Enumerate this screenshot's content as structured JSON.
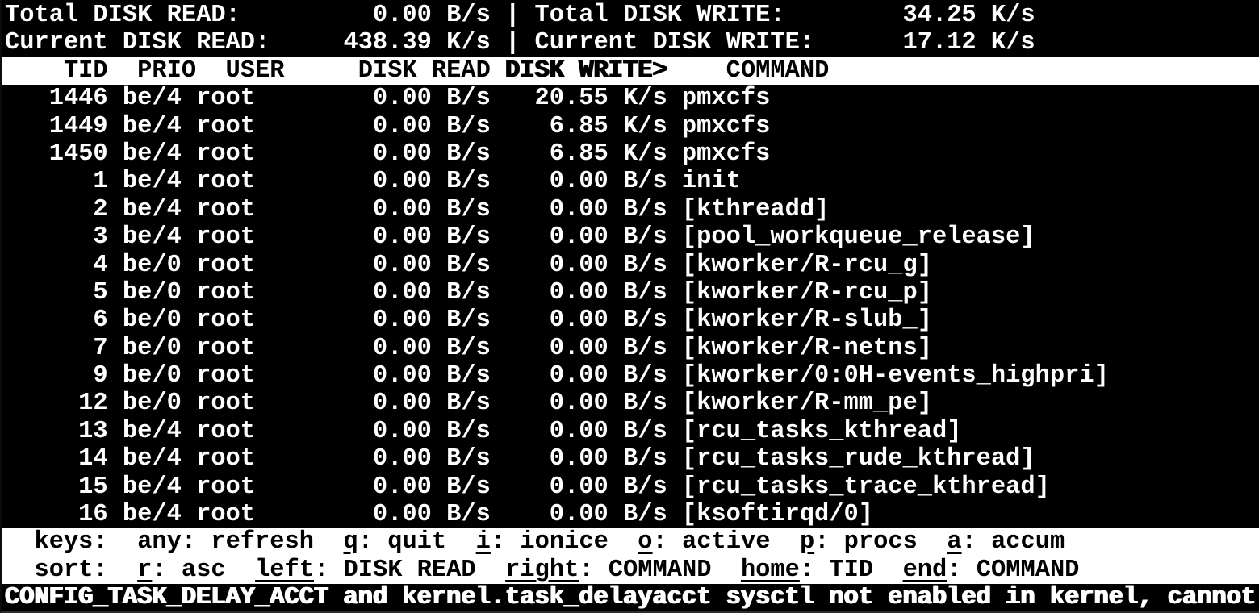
{
  "summary": {
    "total_read_label": "Total DISK READ:",
    "total_read": "0.00 B/s",
    "total_write_label": "Total DISK WRITE:",
    "total_write": "34.25 K/s",
    "current_read_label": "Current DISK READ:",
    "current_read": "438.39 K/s",
    "current_write_label": "Current DISK WRITE:",
    "current_write": "17.12 K/s",
    "separator": "|"
  },
  "table": {
    "columns": [
      "TID",
      "PRIO",
      "USER",
      "DISK READ",
      "DISK WRITE>",
      "COMMAND"
    ],
    "sort_column": "DISK WRITE>",
    "sort_direction": "desc",
    "rows": [
      {
        "tid": "1446",
        "prio": "be/4",
        "user": "root",
        "disk_read": "0.00 B/s",
        "disk_write": "20.55 K/s",
        "command": "pmxcfs"
      },
      {
        "tid": "1449",
        "prio": "be/4",
        "user": "root",
        "disk_read": "0.00 B/s",
        "disk_write": "6.85 K/s",
        "command": "pmxcfs"
      },
      {
        "tid": "1450",
        "prio": "be/4",
        "user": "root",
        "disk_read": "0.00 B/s",
        "disk_write": "6.85 K/s",
        "command": "pmxcfs"
      },
      {
        "tid": "1",
        "prio": "be/4",
        "user": "root",
        "disk_read": "0.00 B/s",
        "disk_write": "0.00 B/s",
        "command": "init"
      },
      {
        "tid": "2",
        "prio": "be/4",
        "user": "root",
        "disk_read": "0.00 B/s",
        "disk_write": "0.00 B/s",
        "command": "[kthreadd]"
      },
      {
        "tid": "3",
        "prio": "be/4",
        "user": "root",
        "disk_read": "0.00 B/s",
        "disk_write": "0.00 B/s",
        "command": "[pool_workqueue_release]"
      },
      {
        "tid": "4",
        "prio": "be/0",
        "user": "root",
        "disk_read": "0.00 B/s",
        "disk_write": "0.00 B/s",
        "command": "[kworker/R-rcu_g]"
      },
      {
        "tid": "5",
        "prio": "be/0",
        "user": "root",
        "disk_read": "0.00 B/s",
        "disk_write": "0.00 B/s",
        "command": "[kworker/R-rcu_p]"
      },
      {
        "tid": "6",
        "prio": "be/0",
        "user": "root",
        "disk_read": "0.00 B/s",
        "disk_write": "0.00 B/s",
        "command": "[kworker/R-slub_]"
      },
      {
        "tid": "7",
        "prio": "be/0",
        "user": "root",
        "disk_read": "0.00 B/s",
        "disk_write": "0.00 B/s",
        "command": "[kworker/R-netns]"
      },
      {
        "tid": "9",
        "prio": "be/0",
        "user": "root",
        "disk_read": "0.00 B/s",
        "disk_write": "0.00 B/s",
        "command": "[kworker/0:0H-events_highpri]"
      },
      {
        "tid": "12",
        "prio": "be/0",
        "user": "root",
        "disk_read": "0.00 B/s",
        "disk_write": "0.00 B/s",
        "command": "[kworker/R-mm_pe]"
      },
      {
        "tid": "13",
        "prio": "be/4",
        "user": "root",
        "disk_read": "0.00 B/s",
        "disk_write": "0.00 B/s",
        "command": "[rcu_tasks_kthread]"
      },
      {
        "tid": "14",
        "prio": "be/4",
        "user": "root",
        "disk_read": "0.00 B/s",
        "disk_write": "0.00 B/s",
        "command": "[rcu_tasks_rude_kthread]"
      },
      {
        "tid": "15",
        "prio": "be/4",
        "user": "root",
        "disk_read": "0.00 B/s",
        "disk_write": "0.00 B/s",
        "command": "[rcu_tasks_trace_kthread]"
      },
      {
        "tid": "16",
        "prio": "be/4",
        "user": "root",
        "disk_read": "0.00 B/s",
        "disk_write": "0.00 B/s",
        "command": "[ksoftirqd/0]"
      }
    ]
  },
  "help": {
    "keys_label": "keys:",
    "keys": [
      {
        "key": "any",
        "desc": "refresh",
        "underline": false
      },
      {
        "key": "q",
        "desc": "quit",
        "underline": true
      },
      {
        "key": "i",
        "desc": "ionice",
        "underline": true
      },
      {
        "key": "o",
        "desc": "active",
        "underline": true
      },
      {
        "key": "p",
        "desc": "procs",
        "underline": true
      },
      {
        "key": "a",
        "desc": "accum",
        "underline": true
      }
    ],
    "sort_label": "sort:",
    "sort": [
      {
        "key": "r",
        "desc": "asc",
        "underline": true
      },
      {
        "key": "left",
        "desc": "DISK READ",
        "underline": true
      },
      {
        "key": "right",
        "desc": "COMMAND",
        "underline": true
      },
      {
        "key": "home",
        "desc": "TID",
        "underline": true
      },
      {
        "key": "end",
        "desc": "COMMAND",
        "underline": true
      }
    ]
  },
  "status": "CONFIG_TASK_DELAY_ACCT and kernel.task_delayacct sysctl not enabled in kernel, cannot",
  "colors": {
    "background": "#000000",
    "foreground": "#ffffff",
    "highlight_bg": "#ffffff",
    "highlight_fg": "#000000"
  }
}
